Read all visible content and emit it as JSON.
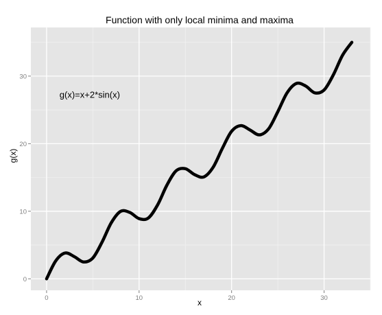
{
  "chart_data": {
    "type": "line",
    "title": "Function with only local minima and maxima",
    "xlabel": "x",
    "ylabel": "g(x)",
    "xlim": [
      -1.7,
      35.0
    ],
    "ylim": [
      -1.7,
      37.2
    ],
    "x_ticks": [
      0,
      10,
      20,
      30
    ],
    "y_ticks": [
      0,
      10,
      20,
      30
    ],
    "x_tick_labels": [
      "0",
      "10",
      "20",
      "30"
    ],
    "y_tick_labels": [
      "0",
      "10",
      "20",
      "30"
    ],
    "grid": true,
    "legend": "none",
    "annotations": [
      {
        "text": "g(x)=x+2*sin(x)",
        "x": 1.4,
        "y": 26.8
      }
    ],
    "series": [
      {
        "function": "x+2*sin(x)",
        "x_range": [
          0,
          33.3
        ],
        "color": "#000000",
        "points": [
          [
            0,
            0
          ],
          [
            1,
            2.68
          ],
          [
            2,
            3.82
          ],
          [
            3,
            3.28
          ],
          [
            4,
            2.49
          ],
          [
            5,
            3.08
          ],
          [
            6,
            5.44
          ],
          [
            7,
            8.31
          ],
          [
            8,
            9.98
          ],
          [
            9,
            9.82
          ],
          [
            10,
            8.91
          ],
          [
            11,
            9.0
          ],
          [
            12,
            10.93
          ],
          [
            13,
            13.84
          ],
          [
            14,
            15.98
          ],
          [
            15,
            16.3
          ],
          [
            16,
            15.42
          ],
          [
            17,
            15.08
          ],
          [
            18,
            16.5
          ],
          [
            19,
            19.3
          ],
          [
            20,
            21.83
          ],
          [
            21,
            22.67
          ],
          [
            22,
            22.02
          ],
          [
            23,
            21.3
          ],
          [
            24,
            22.19
          ],
          [
            25,
            24.74
          ],
          [
            26,
            27.53
          ],
          [
            27,
            28.91
          ],
          [
            28,
            28.54
          ],
          [
            29,
            27.52
          ],
          [
            30,
            27.94
          ],
          [
            31,
            30.19
          ],
          [
            32,
            33.1
          ],
          [
            33,
            34.998
          ]
        ]
      }
    ]
  },
  "colors": {
    "panel_background": "#e5e5e5",
    "grid_major": "#ffffff",
    "grid_minor": "#f2f2f2",
    "tick_label": "#7f7f7f",
    "line": "#000000"
  }
}
